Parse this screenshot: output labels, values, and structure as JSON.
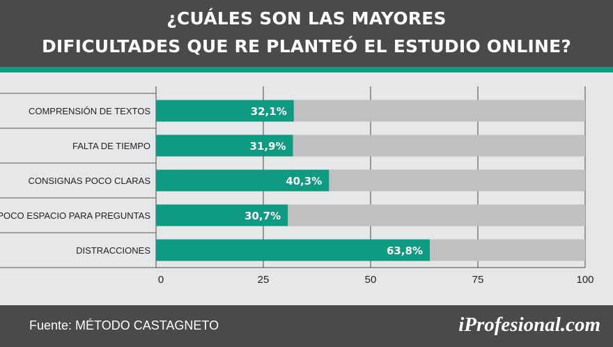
{
  "header": {
    "title_line1": "¿CUÁLES SON LAS MAYORES",
    "title_line2": "DIFICULTADES QUE RE PLANTEÓ EL ESTUDIO ONLINE?"
  },
  "footer": {
    "source": "Fuente: MÉTODO CASTAGNETO",
    "brand": "iProfesional.com"
  },
  "colors": {
    "header_bg": "#4a4a4a",
    "accent": "#0f9a82",
    "track": "#bfc0c2",
    "plot_bg": "#e6e7e8"
  },
  "chart_data": {
    "type": "bar",
    "orientation": "horizontal",
    "title": "¿CUÁLES SON LAS MAYORES DIFICULTADES QUE RE PLANTEÓ EL ESTUDIO ONLINE?",
    "categories": [
      "COMPRENSIÓN DE TEXTOS",
      "FALTA DE TIEMPO",
      "CONSIGNAS POCO CLARAS",
      "POCO ESPACIO PARA PREGUNTAS",
      "DISTRACCIONES"
    ],
    "values": [
      32.1,
      31.9,
      40.3,
      30.7,
      63.8
    ],
    "value_labels": [
      "32,1%",
      "31,9%",
      "40,3%",
      "30,7%",
      "63,8%"
    ],
    "xlim": [
      0,
      100
    ],
    "xticks": [
      0,
      25,
      50,
      75,
      100
    ],
    "xtick_labels": [
      "0",
      "25",
      "50",
      "75",
      "100"
    ],
    "grid": true,
    "legend": "none"
  }
}
